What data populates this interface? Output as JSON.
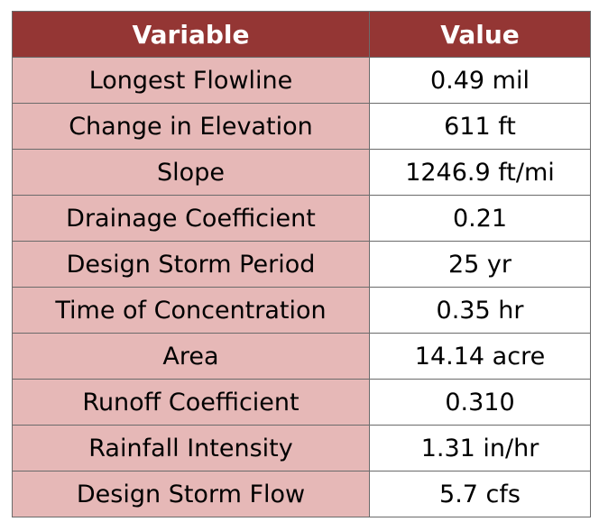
{
  "table": {
    "header_color": "#943634",
    "variable_cell_color": "#e6b8b7",
    "columns": [
      "Variable",
      "Value"
    ],
    "rows": [
      {
        "variable": "Longest Flowline",
        "value": "0.49 mil"
      },
      {
        "variable": "Change in Elevation",
        "value": "611 ft"
      },
      {
        "variable": "Slope",
        "value": "1246.9 ft/mi"
      },
      {
        "variable": "Drainage Coefficient",
        "value": "0.21"
      },
      {
        "variable": "Design Storm Period",
        "value": "25 yr"
      },
      {
        "variable": "Time of Concentration",
        "value": "0.35 hr"
      },
      {
        "variable": "Area",
        "value": "14.14 acre"
      },
      {
        "variable": "Runoff Coefficient",
        "value": "0.310"
      },
      {
        "variable": "Rainfall Intensity",
        "value": "1.31 in/hr"
      },
      {
        "variable": "Design Storm Flow",
        "value": "5.7 cfs"
      }
    ]
  }
}
